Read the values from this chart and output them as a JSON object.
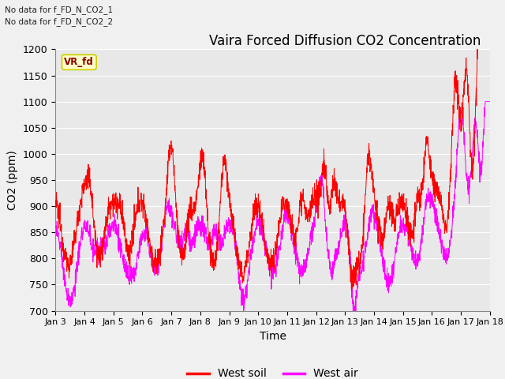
{
  "title": "Vaira Forced Diffusion CO2 Concentration",
  "xlabel": "Time",
  "ylabel": "CO2 (ppm)",
  "ylim": [
    700,
    1200
  ],
  "yticks": [
    700,
    750,
    800,
    850,
    900,
    950,
    1000,
    1050,
    1100,
    1150,
    1200
  ],
  "x_labels": [
    "Jan 3",
    "Jan 4",
    "Jan 5",
    "Jan 6",
    "Jan 7",
    "Jan 8",
    "Jan 9",
    "Jan 10",
    "Jan 11",
    "Jan 12",
    "Jan 13",
    "Jan 14",
    "Jan 15",
    "Jan 16",
    "Jan 17",
    "Jan 18"
  ],
  "no_data_text1": "No data for f_FD_N_CO2_1",
  "no_data_text2": "No data for f_FD_N_CO2_2",
  "vr_fd_label": "VR_fd",
  "legend_soil": "West soil",
  "legend_air": "West air",
  "soil_color": "#ff0000",
  "air_color": "#ff00ff",
  "bg_color": "#e8e8e8",
  "plot_bg_color": "#e8e8e8",
  "fig_bg_color": "#f0f0f0",
  "grid_color": "#ffffff",
  "title_fontsize": 12,
  "axis_fontsize": 10,
  "tick_fontsize": 9
}
